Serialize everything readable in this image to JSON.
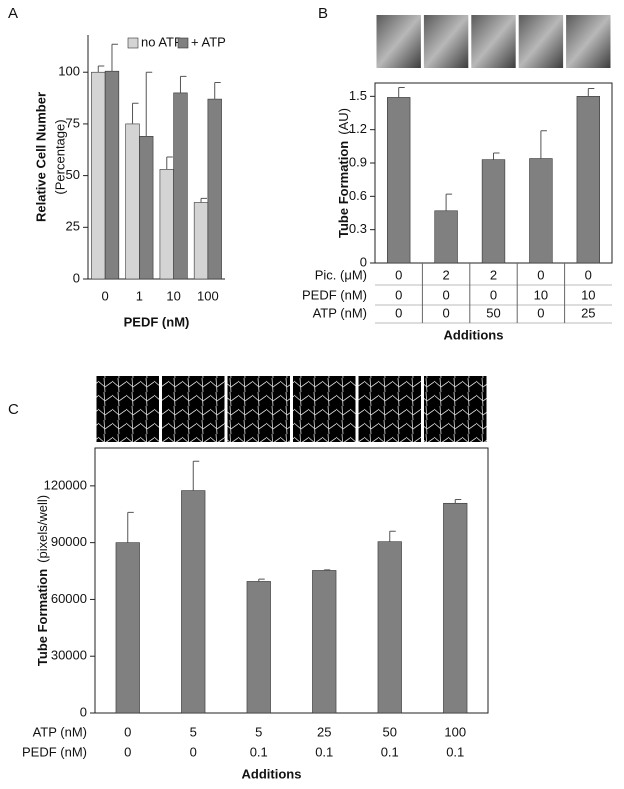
{
  "chart_data": [
    {
      "type": "bar",
      "panel": "A",
      "ylabel": "Relative Cell Number",
      "ylabel_sub": "(Percentage)",
      "xlabel": "PEDF (nM)",
      "categories": [
        "0",
        "1",
        "10",
        "100"
      ],
      "series": [
        {
          "name": "no ATP",
          "color": "#d4d4d4",
          "values": [
            100,
            75,
            53,
            37
          ],
          "errors": [
            3,
            10,
            6,
            2
          ]
        },
        {
          "name": "+ ATP",
          "color": "#808080",
          "values": [
            100.5,
            69,
            90,
            87
          ],
          "errors": [
            13,
            31,
            8,
            8
          ]
        }
      ],
      "ylim": [
        0,
        118
      ],
      "yticks": [
        0,
        25,
        50,
        75,
        100
      ],
      "legend": "upper right"
    },
    {
      "type": "bar",
      "panel": "B",
      "ylabel": "Tube Formation",
      "ylabel_sub": "(AU)",
      "xlabel": "Additions",
      "color": "#808080",
      "values": [
        1.49,
        0.47,
        0.93,
        0.94,
        1.5
      ],
      "errors": [
        0.09,
        0.15,
        0.06,
        0.25,
        0.07
      ],
      "conditions": [
        {
          "label": "Pic. (μM)",
          "values": [
            0,
            2,
            2,
            0,
            0
          ]
        },
        {
          "label": "PEDF (nM)",
          "values": [
            0,
            0,
            0,
            10,
            10
          ]
        },
        {
          "label": "ATP (nM)",
          "values": [
            0,
            0,
            50,
            0,
            25
          ]
        }
      ],
      "ylim": [
        0,
        1.62
      ],
      "yticks": [
        0,
        0.3,
        0.6,
        0.9,
        1.2,
        1.5
      ]
    },
    {
      "type": "bar",
      "panel": "C",
      "ylabel": "Tube Formation",
      "ylabel_sub": "(pixels/well)",
      "xlabel": "Additions",
      "color": "#808080",
      "values": [
        90000,
        117500,
        69500,
        75300,
        90500,
        110800
      ],
      "errors": [
        16000,
        15500,
        1200,
        300,
        5500,
        2000
      ],
      "conditions": [
        {
          "label": "ATP (nM)",
          "values": [
            0,
            5,
            5,
            25,
            50,
            100
          ]
        },
        {
          "label": "PEDF (nM)",
          "values": [
            0,
            0,
            0.1,
            0.1,
            0.1,
            0.1
          ]
        }
      ],
      "ylim": [
        0,
        140000
      ],
      "yticks": [
        0,
        30000,
        60000,
        90000,
        120000
      ]
    }
  ]
}
